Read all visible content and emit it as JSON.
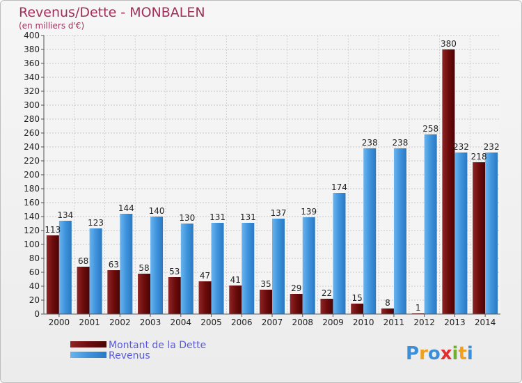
{
  "chart_data": {
    "type": "bar",
    "title": "Revenus/Dette - MONBALEN",
    "subtitle": "(en milliers d'€)",
    "categories": [
      "2000",
      "2001",
      "2002",
      "2003",
      "2004",
      "2005",
      "2006",
      "2007",
      "2008",
      "2009",
      "2010",
      "2011",
      "2012",
      "2013",
      "2014"
    ],
    "series": [
      {
        "name": "Montant de la Dette",
        "color": "#7a1010",
        "values": [
          113,
          68,
          63,
          58,
          53,
          47,
          41,
          35,
          29,
          22,
          15,
          8,
          1,
          380,
          218
        ]
      },
      {
        "name": "Revenus",
        "color": "#3d8fd6",
        "values": [
          134,
          123,
          144,
          140,
          130,
          131,
          131,
          137,
          139,
          174,
          238,
          238,
          258,
          232,
          232
        ]
      }
    ],
    "ylim": [
      0,
      400
    ],
    "ytick_step": 20,
    "grid": true,
    "legend_position": "bottom-left"
  },
  "logo": {
    "text": "Proxiti",
    "letters": [
      "P",
      "r",
      "o",
      "x",
      "i",
      "t",
      "i"
    ]
  }
}
